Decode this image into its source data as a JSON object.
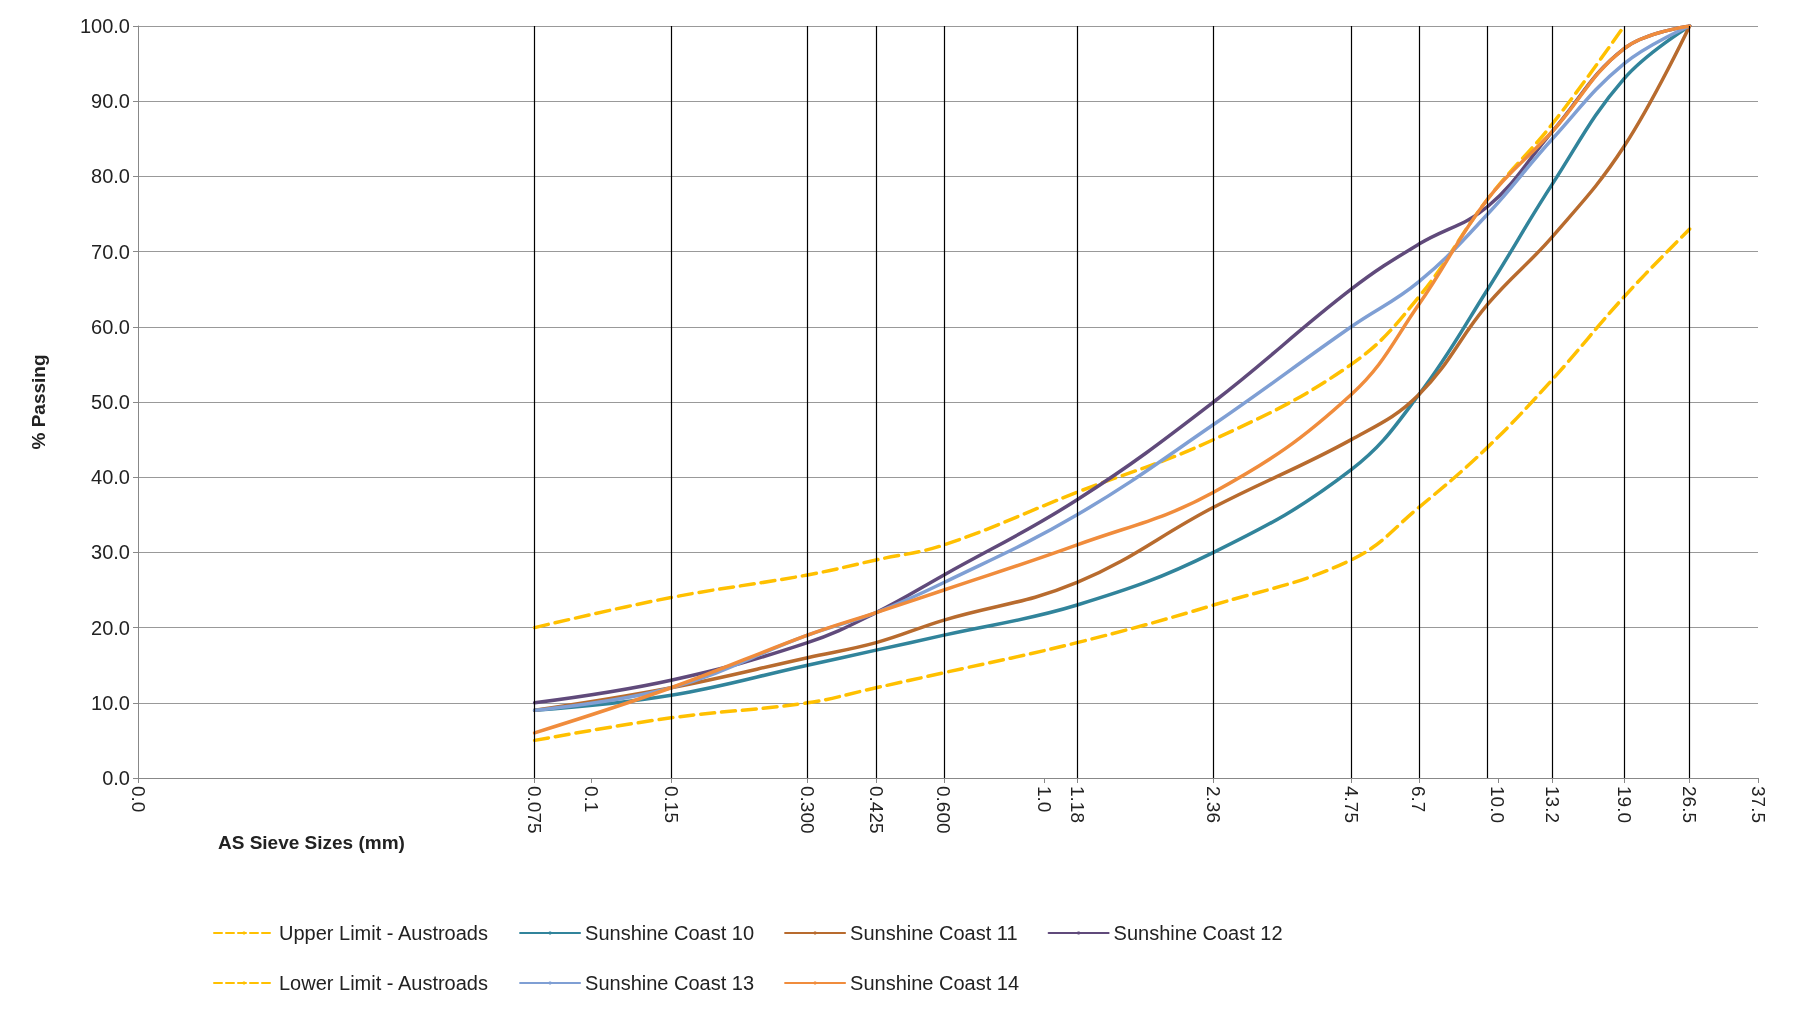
{
  "chart_data": {
    "type": "line",
    "xlabel": "AS Sieve Sizes (mm)",
    "ylabel": "% Passing",
    "log": "x",
    "xlim": [
      0.01,
      37.5
    ],
    "xticks": [
      {
        "value": 0.01,
        "label": "0.0"
      },
      0.075,
      0.1,
      0.15,
      {
        "value": 0.3,
        "label": "0.300"
      },
      0.425,
      {
        "value": 0.6,
        "label": "0.600"
      },
      {
        "value": 1,
        "label": "1.0"
      },
      1.18,
      2.36,
      4.75,
      6.7,
      {
        "value": 10,
        "label": "10.0"
      },
      {
        "value": 13.2,
        "label": "13.2"
      },
      {
        "value": 19,
        "label": "19.0"
      },
      26.5,
      37.5
    ],
    "ylim": [
      0,
      100
    ],
    "yticks": [
      {
        "value": 0,
        "label": "0.0"
      },
      {
        "value": 10,
        "label": "10.0"
      },
      {
        "value": 20,
        "label": "20.0"
      },
      {
        "value": 30,
        "label": "30.0"
      },
      {
        "value": 40,
        "label": "40.0"
      },
      {
        "value": 50,
        "label": "50.0"
      },
      {
        "value": 60,
        "label": "60.0"
      },
      {
        "value": 70,
        "label": "70.0"
      },
      {
        "value": 80,
        "label": "80.0"
      },
      {
        "value": 90,
        "label": "90.0"
      },
      {
        "value": 100,
        "label": "100.0"
      }
    ],
    "grid": "y",
    "legend": "bottom",
    "marker": "none",
    "x": [
      0.075,
      0.15,
      0.3,
      0.425,
      0.6,
      1.18,
      2.36,
      4.75,
      6.7,
      9.5,
      13.2,
      19,
      26.5
    ],
    "ref_lines": [
      {
        "axis": "x",
        "value": 0.075,
        "color": "#000000"
      },
      {
        "axis": "x",
        "value": 0.15,
        "color": "#000000"
      },
      {
        "axis": "x",
        "value": 0.3,
        "color": "#000000"
      },
      {
        "axis": "x",
        "value": 0.425,
        "color": "#000000"
      },
      {
        "axis": "x",
        "value": 0.6,
        "color": "#000000"
      },
      {
        "axis": "x",
        "value": 1.18,
        "color": "#000000"
      },
      {
        "axis": "x",
        "value": 2.36,
        "color": "#000000"
      },
      {
        "axis": "x",
        "value": 4.75,
        "color": "#000000"
      },
      {
        "axis": "x",
        "value": 6.7,
        "color": "#000000"
      },
      {
        "axis": "x",
        "value": 9.5,
        "color": "#000000"
      },
      {
        "axis": "x",
        "value": 13.2,
        "color": "#000000"
      },
      {
        "axis": "x",
        "value": 19,
        "color": "#000000"
      },
      {
        "axis": "x",
        "value": 26.5,
        "color": "#000000"
      }
    ],
    "series": [
      {
        "name": "Upper Limit - Austroads",
        "color": "#ffc000",
        "line_style": "dashed",
        "x": [
          0.075,
          0.15,
          0.3,
          0.425,
          0.6,
          1.18,
          2.36,
          4.75,
          6.7,
          9.5,
          13.2,
          19
        ],
        "values": [
          20,
          24,
          27,
          29,
          31,
          38,
          45,
          55,
          64,
          77,
          87,
          100
        ]
      },
      {
        "name": "Sunshine Coast 10",
        "color": "#31849b",
        "values": [
          9,
          11,
          15,
          17,
          19,
          23,
          30,
          41,
          51,
          65,
          79,
          93,
          100
        ]
      },
      {
        "name": "Sunshine Coast 11",
        "color": "#b86b2e",
        "values": [
          9,
          12,
          16,
          18,
          21,
          26,
          36,
          45,
          51,
          63,
          72,
          84,
          100
        ]
      },
      {
        "name": "Sunshine Coast 12",
        "color": "#604a7b",
        "values": [
          10,
          13,
          18,
          22,
          27,
          37,
          50,
          65,
          71,
          76,
          86,
          97,
          100
        ]
      },
      {
        "name": "Lower Limit - Austroads",
        "color": "#ffc000",
        "line_style": "dashed",
        "values": [
          5,
          8,
          10,
          12,
          14,
          18,
          23,
          29,
          36,
          44,
          53,
          64,
          73
        ]
      },
      {
        "name": "Sunshine Coast 13",
        "color": "#7f9fd4",
        "values": [
          9,
          12,
          19,
          22,
          26,
          35,
          47,
          60,
          66,
          75,
          85,
          95,
          100
        ]
      },
      {
        "name": "Sunshine Coast 14",
        "color": "#f08c3c",
        "values": [
          6,
          12,
          19,
          22,
          25,
          31,
          38,
          51,
          63,
          77,
          86,
          97,
          100
        ]
      }
    ]
  }
}
